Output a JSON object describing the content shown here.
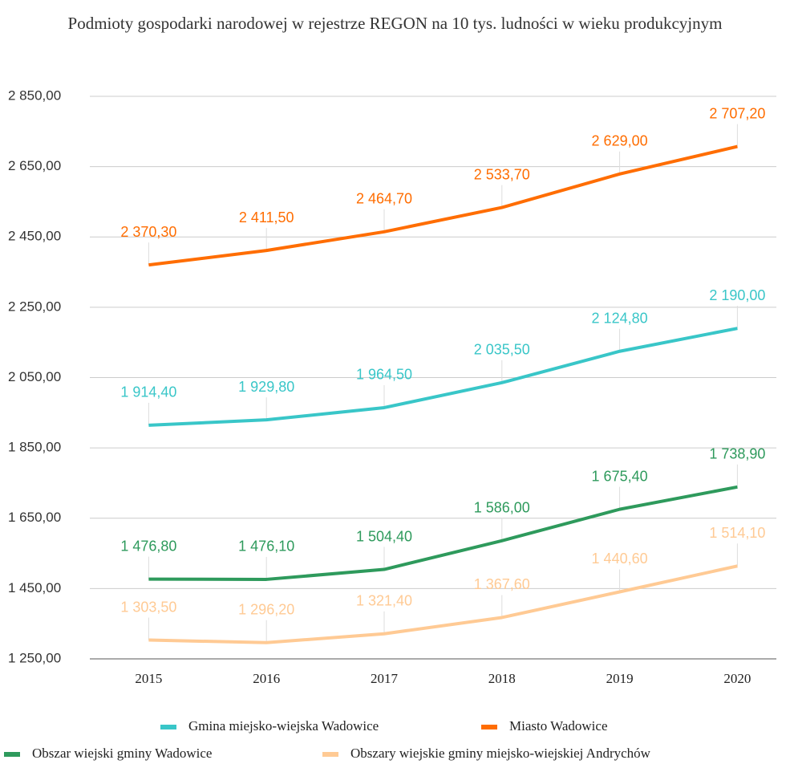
{
  "chart_data": {
    "type": "line",
    "title": "Podmioty gospodarki narodowej w rejestrze REGON na 10 tys. ludności w wieku produkcyjnym",
    "categories": [
      "2015",
      "2016",
      "2017",
      "2018",
      "2019",
      "2020"
    ],
    "ylim": [
      1250,
      2850
    ],
    "yticks": [
      {
        "value": 1250,
        "label": "1 250,00"
      },
      {
        "value": 1450,
        "label": "1 450,00"
      },
      {
        "value": 1650,
        "label": "1 650,00"
      },
      {
        "value": 1850,
        "label": "1 850,00"
      },
      {
        "value": 2050,
        "label": "2 050,00"
      },
      {
        "value": 2250,
        "label": "2 250,00"
      },
      {
        "value": 2450,
        "label": "2 450,00"
      },
      {
        "value": 2650,
        "label": "2 650,00"
      },
      {
        "value": 2850,
        "label": "2 850,00"
      }
    ],
    "grid": true,
    "series": [
      {
        "name": "Gmina miejsko-wiejska Wadowice",
        "color": "#39c6c8",
        "values": [
          1914.4,
          1929.8,
          1964.5,
          2035.5,
          2124.8,
          2190.0
        ],
        "value_labels": [
          "1 914,40",
          "1 929,80",
          "1 964,50",
          "2 035,50",
          "2 124,80",
          "2 190,00"
        ]
      },
      {
        "name": "Miasto Wadowice",
        "color": "#ff6d01",
        "values": [
          2370.3,
          2411.5,
          2464.7,
          2533.7,
          2629.0,
          2707.2
        ],
        "value_labels": [
          "2 370,30",
          "2 411,50",
          "2 464,70",
          "2 533,70",
          "2 629,00",
          "2 707,20"
        ]
      },
      {
        "name": "Obszar wiejski gminy Wadowice",
        "color": "#2e9a5c",
        "values": [
          1476.8,
          1476.1,
          1504.4,
          1586.0,
          1675.4,
          1738.9
        ],
        "value_labels": [
          "1 476,80",
          "1 476,10",
          "1 504,40",
          "1 586,00",
          "1 675,40",
          "1 738,90"
        ]
      },
      {
        "name": "Obszary wiejskie gminy miejsko-wiejskiej Andrychów",
        "color": "#ffca94",
        "values": [
          1303.5,
          1296.2,
          1321.4,
          1367.6,
          1440.6,
          1514.1
        ],
        "value_labels": [
          "1 303,50",
          "1 296,20",
          "1 321,40",
          "1 367,60",
          "1 440,60",
          "1 514,10"
        ]
      }
    ]
  }
}
